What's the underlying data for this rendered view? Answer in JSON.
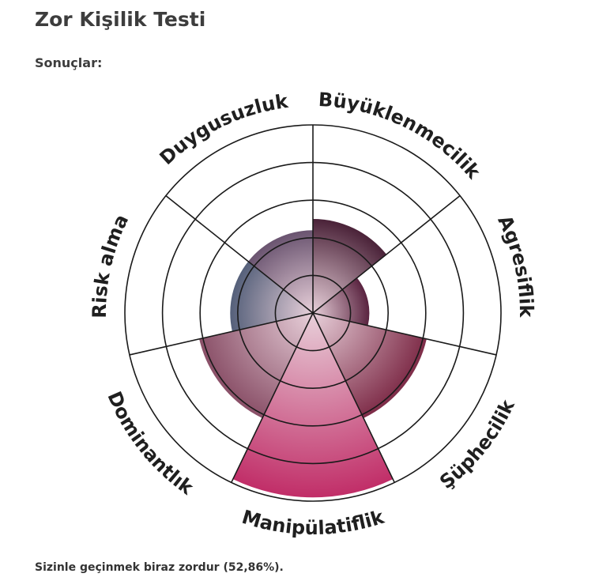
{
  "page": {
    "title": "Zor Kişilik Testi",
    "subtitle": "Sonuçlar:",
    "summary": "Sizinle geçinmek biraz zordur (52,86%)."
  },
  "chart_data": {
    "type": "polar-area",
    "rmax": 5,
    "ring_count": 5,
    "start_angle_deg": -90,
    "categories": [
      "Büyüklenmecilik",
      "Agresiflik",
      "Şüphecilik",
      "Manipülatiflik",
      "Dominantlık",
      "Risk alma",
      "Duygusuzluk"
    ],
    "values": [
      2.5,
      1.5,
      3.1,
      4.9,
      3.1,
      2.2,
      2.2
    ],
    "colors": {
      "Büyüklenmecilik": "#4a2238",
      "Agresiflik": "#5a2440",
      "Şüphecilik": "#7e2c48",
      "Manipülatiflik": "#c12e68",
      "Dominantlık": "#8a5068",
      "Risk alma": "#55607a",
      "Duygusuzluk": "#6a5470"
    }
  }
}
